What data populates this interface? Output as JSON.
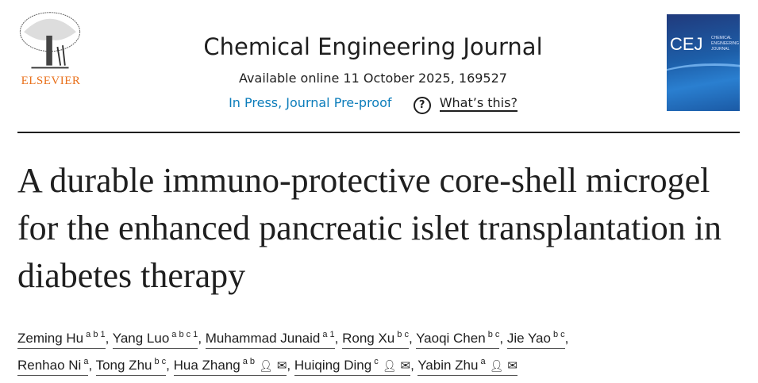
{
  "publisher": {
    "name": "ELSEVIER",
    "color": "#e9711c"
  },
  "header": {
    "journal_title": "Chemical Engineering Journal",
    "availability": "Available online 11 October 2025, 169527",
    "status_link": "In Press, Journal Pre-proof",
    "help_link": "What’s this?",
    "help_icon": "question-circle-icon",
    "cover_text": "CEJ",
    "cover_subtitle": "CHEMICAL ENGINEERING JOURNAL"
  },
  "article": {
    "title": "A durable immuno-protective core-shell microgel for the enhanced pancreatic islet transplantation in diabetes therapy"
  },
  "authors": [
    {
      "name": "Zeming Hu",
      "sup": "a b 1",
      "icons": false
    },
    {
      "name": "Yang Luo",
      "sup": "a b c 1",
      "icons": false
    },
    {
      "name": "Muhammad Junaid",
      "sup": "a 1",
      "icons": false
    },
    {
      "name": "Rong Xu",
      "sup": "b c",
      "icons": false
    },
    {
      "name": "Yaoqi Chen",
      "sup": "b c",
      "icons": false
    },
    {
      "name": "Jie Yao",
      "sup": "b c",
      "icons": false
    },
    {
      "name": "Renhao Ni",
      "sup": "a",
      "icons": false
    },
    {
      "name": "Tong Zhu",
      "sup": "b c",
      "icons": false
    },
    {
      "name": "Hua Zhang",
      "sup": "a b",
      "icons": true
    },
    {
      "name": "Huiqing Ding",
      "sup": "c",
      "icons": true
    },
    {
      "name": "Yabin Zhu",
      "sup": "a",
      "icons": true
    }
  ]
}
